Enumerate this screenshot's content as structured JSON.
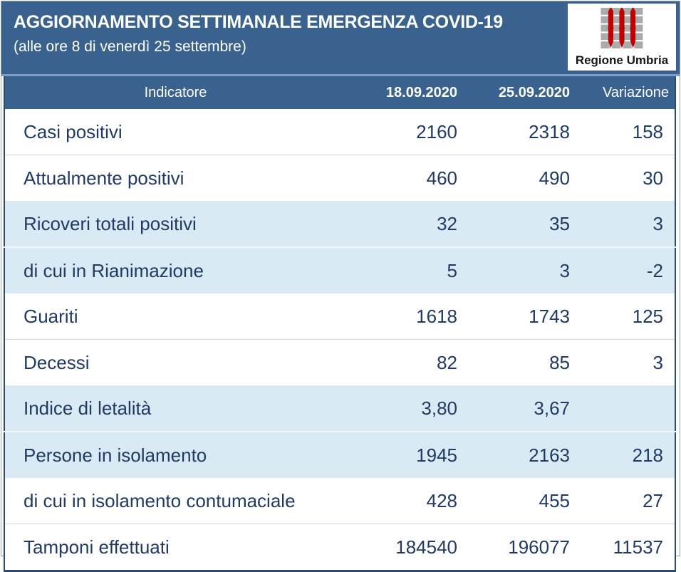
{
  "header": {
    "title": "AGGIORNAMENTO SETTIMANALE EMERGENZA COVID-19",
    "subtitle": "(alle ore 8 di venerdì 25 settembre)",
    "logo_text": "Regione Umbria"
  },
  "colors": {
    "band_blue": "#3A628F",
    "divider_blue": "#7E9CC6",
    "row_shade_blue": "#DAEAF4",
    "text_navy": "#203A64",
    "table_border_navy": "#2C4A6E",
    "logo_red": "#C00000",
    "logo_gray": "#ABABAB"
  },
  "table": {
    "columns": [
      "Indicatore",
      "18.09.2020",
      "25.09.2020",
      "Variazione"
    ],
    "rows": [
      {
        "label": "Casi positivi",
        "v1": "2160",
        "v2": "2318",
        "var": "158"
      },
      {
        "label": "Attualmente positivi",
        "v1": "460",
        "v2": "490",
        "var": "30"
      },
      {
        "label": "Ricoveri totali positivi",
        "v1": "32",
        "v2": "35",
        "var": "3"
      },
      {
        "label": "di cui in Rianimazione",
        "v1": "5",
        "v2": "3",
        "var": "-2"
      },
      {
        "label": "Guariti",
        "v1": "1618",
        "v2": "1743",
        "var": "125"
      },
      {
        "label": "Decessi",
        "v1": "82",
        "v2": "85",
        "var": "3"
      },
      {
        "label": "Indice di letalità",
        "v1": "3,80",
        "v2": "3,67",
        "var": ""
      },
      {
        "label": "Persone in isolamento",
        "v1": "1945",
        "v2": "2163",
        "var": "218"
      },
      {
        "label": "di cui in isolamento contumaciale",
        "v1": "428",
        "v2": "455",
        "var": "27"
      },
      {
        "label": "Tamponi effettuati",
        "v1": "184540",
        "v2": "196077",
        "var": "11537"
      }
    ]
  }
}
